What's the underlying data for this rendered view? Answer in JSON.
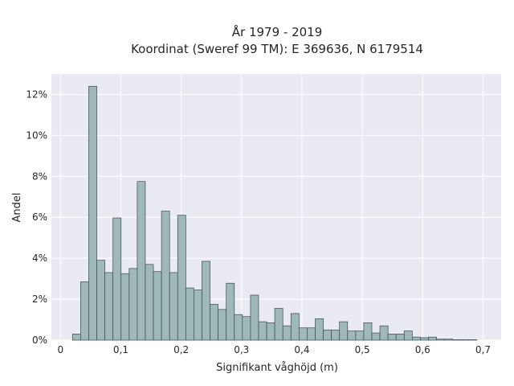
{
  "chart_data": {
    "type": "bar",
    "title": "År 1979 - 2019",
    "subtitle": "Koordinat (Sweref 99 TM): E 369636, N 6179514",
    "xlabel": "Signifikant våghöjd (m)",
    "ylabel": "Andel",
    "xlim": [
      -0.015,
      0.73
    ],
    "ylim": [
      0,
      13
    ],
    "xticks": [
      0,
      0.1,
      0.2,
      0.3,
      0.4,
      0.5,
      0.6,
      0.7
    ],
    "xtick_labels": [
      "0",
      "0,1",
      "0,2",
      "0,3",
      "0,4",
      "0,5",
      "0,6",
      "0,7"
    ],
    "yticks": [
      0,
      2,
      4,
      6,
      8,
      10,
      12
    ],
    "ytick_labels": [
      "0%",
      "2%",
      "4%",
      "6%",
      "8%",
      "10%",
      "12%"
    ],
    "grid": true,
    "bin_width": 0.0134,
    "bins_start": [
      0.02,
      0.0334,
      0.0468,
      0.0602,
      0.0736,
      0.087,
      0.1004,
      0.1138,
      0.1272,
      0.1406,
      0.154,
      0.1674,
      0.1808,
      0.1942,
      0.2076,
      0.221,
      0.2344,
      0.2478,
      0.2612,
      0.2746,
      0.288,
      0.3014,
      0.3148,
      0.3282,
      0.3416,
      0.355,
      0.3684,
      0.3818,
      0.3952,
      0.4086,
      0.422,
      0.4354,
      0.4488,
      0.4622,
      0.4756,
      0.489,
      0.5024,
      0.5158,
      0.5292,
      0.5426,
      0.556,
      0.5694,
      0.5828,
      0.5962,
      0.6096,
      0.623,
      0.6364,
      0.6498,
      0.6632,
      0.6766
    ],
    "values": [
      0.3,
      2.85,
      12.4,
      3.9,
      3.3,
      5.97,
      3.25,
      3.5,
      7.75,
      3.7,
      3.35,
      6.3,
      3.3,
      6.1,
      2.55,
      2.45,
      3.85,
      1.75,
      1.5,
      2.78,
      1.25,
      1.15,
      2.2,
      0.9,
      0.85,
      1.55,
      0.7,
      1.3,
      0.6,
      0.6,
      1.05,
      0.5,
      0.5,
      0.9,
      0.45,
      0.45,
      0.85,
      0.35,
      0.7,
      0.3,
      0.3,
      0.45,
      0.15,
      0.12,
      0.15,
      0.05,
      0.05,
      0.02,
      0.02,
      0.02
    ],
    "colors": {
      "bar_fill": "#9fb8b8",
      "bar_stroke": "#3a4a4a",
      "plot_bg": "#eaeaf2",
      "grid": "#ffffff",
      "text": "#262626"
    }
  }
}
